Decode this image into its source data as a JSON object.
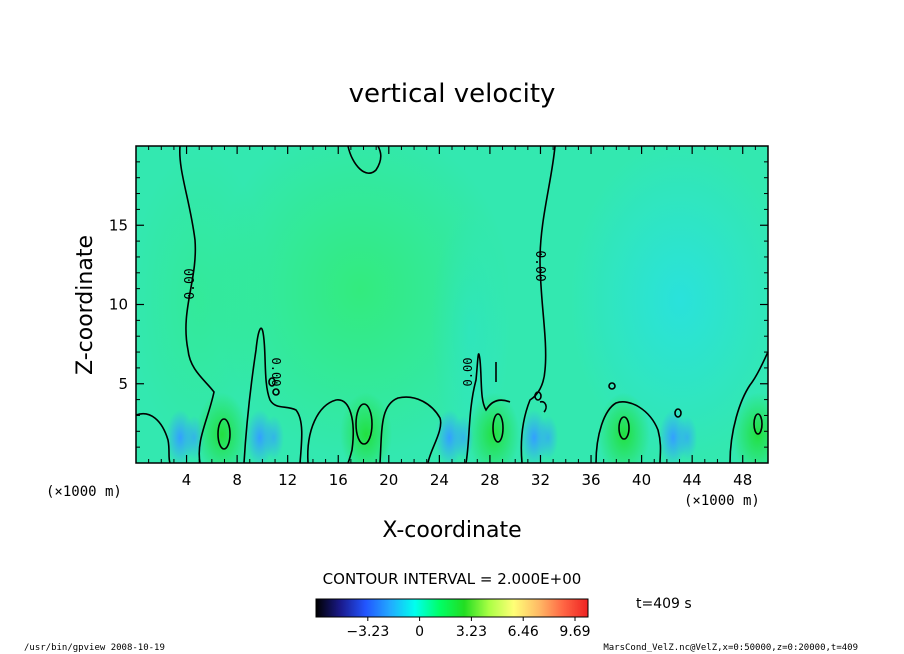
{
  "chart_data": {
    "type": "heatmap",
    "title": "vertical velocity",
    "xlabel": "X-coordinate",
    "ylabel": "Z-coordinate",
    "x_unit": "(×1000 m)",
    "y_unit": "(×1000 m)",
    "xlim": [
      0,
      50
    ],
    "ylim": [
      0,
      20
    ],
    "x_ticks": [
      4,
      8,
      12,
      16,
      20,
      24,
      28,
      32,
      36,
      40,
      44,
      48
    ],
    "y_ticks": [
      5,
      10,
      15
    ],
    "x_tick_labels": [
      "4",
      "8",
      "12",
      "16",
      "20",
      "24",
      "28",
      "32",
      "36",
      "40",
      "44",
      "48"
    ],
    "y_tick_labels": [
      "5",
      "10",
      "15"
    ],
    "contour_label": "0.00",
    "contour_interval_text": "CONTOUR INTERVAL = 2.000E+00",
    "time_text": "t=409 s",
    "colorbar": {
      "ticks": [
        -3.23,
        0,
        3.23,
        6.46,
        9.69
      ],
      "tick_labels": [
        "−3.23",
        "0",
        "3.23",
        "6.46",
        "9.69"
      ],
      "range": [
        -6.46,
        10.5
      ],
      "colors": [
        "#000000",
        "#1a1a8c",
        "#2255ff",
        "#22aaff",
        "#00ffee",
        "#00ff66",
        "#22dd22",
        "#aaff44",
        "#ffff77",
        "#ffbb66",
        "#ff6644",
        "#ee2222"
      ]
    },
    "field_color_background": "#33e8b0",
    "upward_cores_x": [
      6.8,
      18.2,
      28.3,
      38.6,
      49.2
    ],
    "downward_cores_x": [
      3.5,
      9.8,
      24.8,
      31.5,
      42.5
    ]
  },
  "footer": {
    "left": "/usr/bin/gpview   2008-10-19",
    "right": "MarsCond_VelZ.nc@VelZ,x=0:50000,z=0:20000,t=409"
  }
}
